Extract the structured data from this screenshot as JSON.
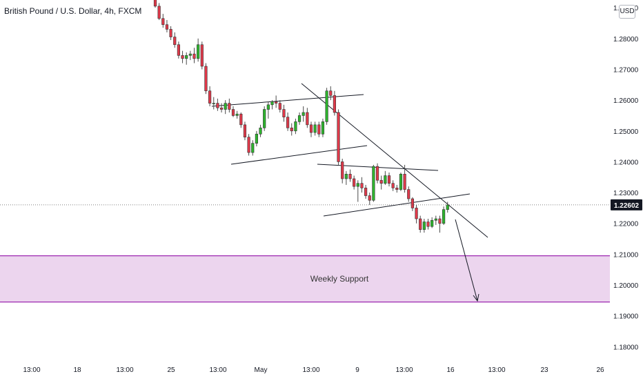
{
  "header": {
    "title": "British Pound / U.S. Dollar, 4h, FXCM",
    "currency_button": "USD"
  },
  "price_label": "1.22602",
  "zone_label": "Weekly Support",
  "colors": {
    "up": "#26a69a",
    "up_fill": "#2db52d",
    "down": "#e0394a",
    "wick": "#4a4a4a",
    "zone_fill": "#ecd5ee",
    "zone_border": "#9c27b0",
    "line": "#131722",
    "axis_text": "#131722",
    "price_box": "#131722"
  },
  "chart_data": {
    "type": "candlestick",
    "title": "British Pound / U.S. Dollar, 4h, FXCM",
    "ylim": [
      1.1756,
      1.2925
    ],
    "y_ticks": [
      "1.29000",
      "1.28000",
      "1.27000",
      "1.26000",
      "1.25000",
      "1.24000",
      "1.23000",
      "1.22000",
      "1.21000",
      "1.20000",
      "1.19000",
      "1.18000"
    ],
    "x_ticks": [
      "13:00",
      "18",
      "13:00",
      "25",
      "13:00",
      "May",
      "13:00",
      "9",
      "13:00",
      "16",
      "13:00",
      "23",
      "26"
    ],
    "current_price": 1.22602,
    "candles_ohlc": [
      [
        1.296,
        1.297,
        1.29,
        1.2905
      ],
      [
        1.2905,
        1.2915,
        1.286,
        1.2865
      ],
      [
        1.2865,
        1.288,
        1.2835,
        1.2845
      ],
      [
        1.2845,
        1.286,
        1.282,
        1.283
      ],
      [
        1.283,
        1.284,
        1.2795,
        1.2805
      ],
      [
        1.2805,
        1.282,
        1.277,
        1.278
      ],
      [
        1.278,
        1.279,
        1.2735,
        1.2745
      ],
      [
        1.2745,
        1.276,
        1.272,
        1.2735
      ],
      [
        1.2735,
        1.2755,
        1.2715,
        1.2745
      ],
      [
        1.2745,
        1.276,
        1.273,
        1.275
      ],
      [
        1.275,
        1.277,
        1.272,
        1.2735
      ],
      [
        1.2735,
        1.28,
        1.2725,
        1.278
      ],
      [
        1.278,
        1.279,
        1.27,
        1.271
      ],
      [
        1.271,
        1.272,
        1.262,
        1.263
      ],
      [
        1.263,
        1.2645,
        1.258,
        1.259
      ],
      [
        1.259,
        1.261,
        1.257,
        1.259
      ],
      [
        1.259,
        1.2605,
        1.2565,
        1.2575
      ],
      [
        1.2575,
        1.259,
        1.256,
        1.257
      ],
      [
        1.257,
        1.26,
        1.2555,
        1.259
      ],
      [
        1.259,
        1.2605,
        1.256,
        1.257
      ],
      [
        1.257,
        1.258,
        1.2545,
        1.255
      ],
      [
        1.255,
        1.2565,
        1.254,
        1.2555
      ],
      [
        1.2555,
        1.256,
        1.251,
        1.252
      ],
      [
        1.252,
        1.253,
        1.247,
        1.248
      ],
      [
        1.248,
        1.249,
        1.242,
        1.243
      ],
      [
        1.243,
        1.247,
        1.242,
        1.246
      ],
      [
        1.246,
        1.25,
        1.245,
        1.249
      ],
      [
        1.249,
        1.252,
        1.248,
        1.251
      ],
      [
        1.251,
        1.258,
        1.25,
        1.257
      ],
      [
        1.257,
        1.2595,
        1.254,
        1.2585
      ],
      [
        1.2585,
        1.26,
        1.257,
        1.2595
      ],
      [
        1.2595,
        1.2615,
        1.2575,
        1.259
      ],
      [
        1.259,
        1.26,
        1.256,
        1.257
      ],
      [
        1.257,
        1.2585,
        1.253,
        1.2545
      ],
      [
        1.2545,
        1.256,
        1.25,
        1.251
      ],
      [
        1.251,
        1.2525,
        1.2485,
        1.25
      ],
      [
        1.25,
        1.254,
        1.249,
        1.253
      ],
      [
        1.253,
        1.256,
        1.252,
        1.255
      ],
      [
        1.255,
        1.258,
        1.253,
        1.256
      ],
      [
        1.256,
        1.2575,
        1.251,
        1.252
      ],
      [
        1.252,
        1.253,
        1.248,
        1.2495
      ],
      [
        1.2495,
        1.253,
        1.2485,
        1.252
      ],
      [
        1.252,
        1.253,
        1.248,
        1.249
      ],
      [
        1.249,
        1.254,
        1.248,
        1.253
      ],
      [
        1.253,
        1.264,
        1.252,
        1.263
      ],
      [
        1.263,
        1.2645,
        1.26,
        1.2615
      ],
      [
        1.2615,
        1.263,
        1.255,
        1.256
      ],
      [
        1.256,
        1.257,
        1.239,
        1.24
      ],
      [
        1.24,
        1.241,
        1.233,
        1.2345
      ],
      [
        1.2345,
        1.237,
        1.2325,
        1.236
      ],
      [
        1.236,
        1.2375,
        1.2335,
        1.2345
      ],
      [
        1.2345,
        1.2355,
        1.231,
        1.232
      ],
      [
        1.232,
        1.234,
        1.227,
        1.233
      ],
      [
        1.233,
        1.235,
        1.23,
        1.2315
      ],
      [
        1.2315,
        1.2325,
        1.228,
        1.229
      ],
      [
        1.229,
        1.23,
        1.226,
        1.2275
      ],
      [
        1.2275,
        1.239,
        1.227,
        1.2385
      ],
      [
        1.2385,
        1.2395,
        1.233,
        1.234
      ],
      [
        1.234,
        1.2355,
        1.231,
        1.233
      ],
      [
        1.233,
        1.237,
        1.2325,
        1.2355
      ],
      [
        1.2355,
        1.2365,
        1.232,
        1.233
      ],
      [
        1.233,
        1.234,
        1.2305,
        1.2315
      ],
      [
        1.2315,
        1.2325,
        1.23,
        1.231
      ],
      [
        1.231,
        1.2365,
        1.2305,
        1.236
      ],
      [
        1.236,
        1.239,
        1.23,
        1.231
      ],
      [
        1.231,
        1.232,
        1.227,
        1.228
      ],
      [
        1.228,
        1.2285,
        1.224,
        1.225
      ],
      [
        1.225,
        1.226,
        1.22,
        1.2215
      ],
      [
        1.2215,
        1.2225,
        1.217,
        1.218
      ],
      [
        1.218,
        1.2215,
        1.217,
        1.2205
      ],
      [
        1.2205,
        1.2215,
        1.218,
        1.219
      ],
      [
        1.219,
        1.222,
        1.2185,
        1.221
      ],
      [
        1.221,
        1.2225,
        1.2195,
        1.2215
      ],
      [
        1.2215,
        1.2225,
        1.217,
        1.22
      ],
      [
        1.22,
        1.2255,
        1.2195,
        1.2245
      ],
      [
        1.2245,
        1.227,
        1.2235,
        1.226
      ]
    ],
    "support_zone": [
      1.1945,
      1.2095
    ]
  }
}
